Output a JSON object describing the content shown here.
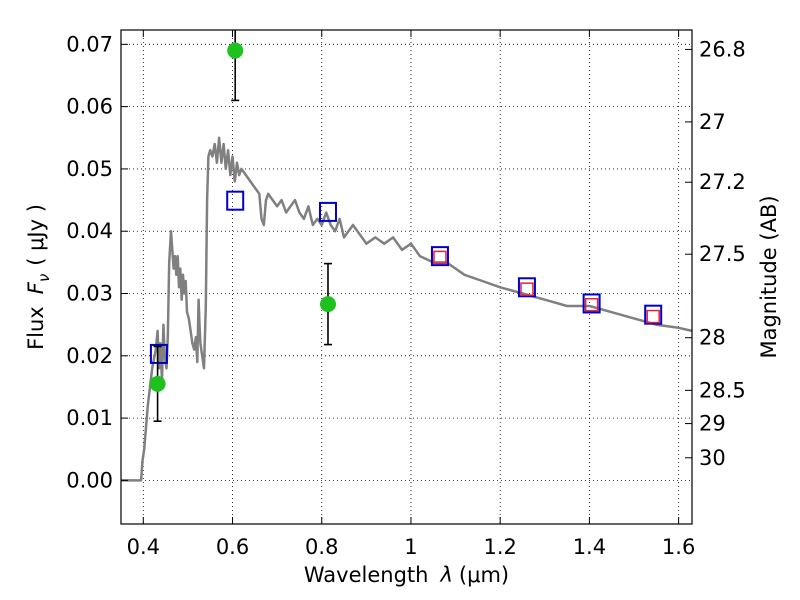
{
  "chart_data": {
    "type": "scatter",
    "xlabel_prefix": "Wavelength",
    "xlabel_symbol": "λ",
    "xlabel_unit": "(μm)",
    "ylabel_prefix": "Flux",
    "ylabel_symbol": "F",
    "ylabel_sub": "ν",
    "ylabel_unit": "( μJy )",
    "y2label": "Magnitude (AB)",
    "xlim": [
      0.35,
      1.63
    ],
    "ylim": [
      -0.007,
      0.0723
    ],
    "grid": true,
    "x_ticks": [
      {
        "value": 0.4,
        "label": "0.4"
      },
      {
        "value": 0.6,
        "label": "0.6"
      },
      {
        "value": 0.8,
        "label": "0.8"
      },
      {
        "value": 1.0,
        "label": "1"
      },
      {
        "value": 1.2,
        "label": "1.2"
      },
      {
        "value": 1.4,
        "label": "1.4"
      },
      {
        "value": 1.6,
        "label": "1.6"
      }
    ],
    "y_ticks": [
      {
        "value": 0.0,
        "label": "0.00"
      },
      {
        "value": 0.01,
        "label": "0.01"
      },
      {
        "value": 0.02,
        "label": "0.02"
      },
      {
        "value": 0.03,
        "label": "0.03"
      },
      {
        "value": 0.04,
        "label": "0.04"
      },
      {
        "value": 0.05,
        "label": "0.05"
      },
      {
        "value": 0.06,
        "label": "0.06"
      },
      {
        "value": 0.07,
        "label": "0.07"
      }
    ],
    "y2_ticks": [
      {
        "value": 26.8,
        "label": "26.8"
      },
      {
        "value": 27.0,
        "label": "27"
      },
      {
        "value": 27.2,
        "label": "27.2"
      },
      {
        "value": 27.5,
        "label": "27.5"
      },
      {
        "value": 28.0,
        "label": "28"
      },
      {
        "value": 28.5,
        "label": "28.5"
      },
      {
        "value": 29.0,
        "label": "29"
      },
      {
        "value": 30.0,
        "label": "30"
      }
    ],
    "series": [
      {
        "kind": "model_sed",
        "color": "#808080",
        "x": [
          0.35,
          0.395,
          0.398,
          0.402,
          0.41,
          0.42,
          0.428,
          0.432,
          0.435,
          0.438,
          0.442,
          0.445,
          0.448,
          0.452,
          0.455,
          0.458,
          0.462,
          0.465,
          0.468,
          0.471,
          0.474,
          0.477,
          0.48,
          0.483,
          0.486,
          0.489,
          0.492,
          0.495,
          0.498,
          0.502,
          0.506,
          0.51,
          0.514,
          0.518,
          0.521,
          0.524,
          0.526,
          0.528,
          0.532,
          0.536,
          0.54,
          0.543,
          0.546,
          0.55,
          0.555,
          0.56,
          0.565,
          0.57,
          0.575,
          0.58,
          0.585,
          0.59,
          0.595,
          0.6,
          0.605,
          0.61,
          0.615,
          0.62,
          0.63,
          0.64,
          0.65,
          0.66,
          0.665,
          0.67,
          0.675,
          0.68,
          0.69,
          0.7,
          0.71,
          0.72,
          0.73,
          0.74,
          0.75,
          0.76,
          0.77,
          0.78,
          0.79,
          0.8,
          0.81,
          0.82,
          0.83,
          0.84,
          0.85,
          0.86,
          0.87,
          0.88,
          0.89,
          0.9,
          0.92,
          0.94,
          0.96,
          0.98,
          1.0,
          1.02,
          1.05,
          1.08,
          1.12,
          1.16,
          1.2,
          1.25,
          1.3,
          1.35,
          1.4,
          1.45,
          1.5,
          1.55,
          1.6,
          1.63
        ],
        "y": [
          0.0,
          0.0,
          0.003,
          0.005,
          0.012,
          0.018,
          0.021,
          0.024,
          0.018,
          0.022,
          0.016,
          0.025,
          0.02,
          0.018,
          0.023,
          0.035,
          0.04,
          0.037,
          0.034,
          0.036,
          0.033,
          0.036,
          0.031,
          0.034,
          0.029,
          0.033,
          0.03,
          0.032,
          0.027,
          0.026,
          0.024,
          0.022,
          0.021,
          0.023,
          0.019,
          0.029,
          0.025,
          0.022,
          0.02,
          0.018,
          0.028,
          0.045,
          0.052,
          0.053,
          0.052,
          0.054,
          0.051,
          0.055,
          0.051,
          0.054,
          0.05,
          0.053,
          0.049,
          0.052,
          0.048,
          0.051,
          0.049,
          0.05,
          0.049,
          0.048,
          0.047,
          0.046,
          0.042,
          0.041,
          0.045,
          0.046,
          0.045,
          0.044,
          0.045,
          0.043,
          0.044,
          0.045,
          0.043,
          0.042,
          0.044,
          0.041,
          0.042,
          0.041,
          0.043,
          0.041,
          0.04,
          0.042,
          0.039,
          0.04,
          0.041,
          0.04,
          0.039,
          0.038,
          0.039,
          0.038,
          0.039,
          0.037,
          0.038,
          0.036,
          0.035,
          0.035,
          0.033,
          0.032,
          0.031,
          0.03,
          0.029,
          0.028,
          0.028,
          0.027,
          0.026,
          0.025,
          0.0245,
          0.024
        ]
      },
      {
        "kind": "observed",
        "marker": "circle",
        "color": "#1ec11e",
        "points": [
          {
            "x": 0.432,
            "y": 0.0155,
            "err": 0.006
          },
          {
            "x": 0.606,
            "y": 0.069,
            "err": 0.008
          },
          {
            "x": 0.814,
            "y": 0.0283,
            "err": 0.0065
          }
        ]
      },
      {
        "kind": "model_broadband",
        "marker": "square",
        "color": "#0000cc",
        "points": [
          {
            "x": 0.435,
            "y": 0.0203
          },
          {
            "x": 0.606,
            "y": 0.0449
          },
          {
            "x": 0.814,
            "y": 0.0431
          },
          {
            "x": 1.065,
            "y": 0.036
          },
          {
            "x": 1.26,
            "y": 0.031
          },
          {
            "x": 1.405,
            "y": 0.0284
          },
          {
            "x": 1.543,
            "y": 0.0266
          }
        ]
      },
      {
        "kind": "model_narrow",
        "marker": "square",
        "color": "#e8203a",
        "points": [
          {
            "x": 1.065,
            "y": 0.0358
          },
          {
            "x": 1.26,
            "y": 0.0307
          },
          {
            "x": 1.405,
            "y": 0.0282
          },
          {
            "x": 1.543,
            "y": 0.0263
          }
        ]
      }
    ]
  }
}
